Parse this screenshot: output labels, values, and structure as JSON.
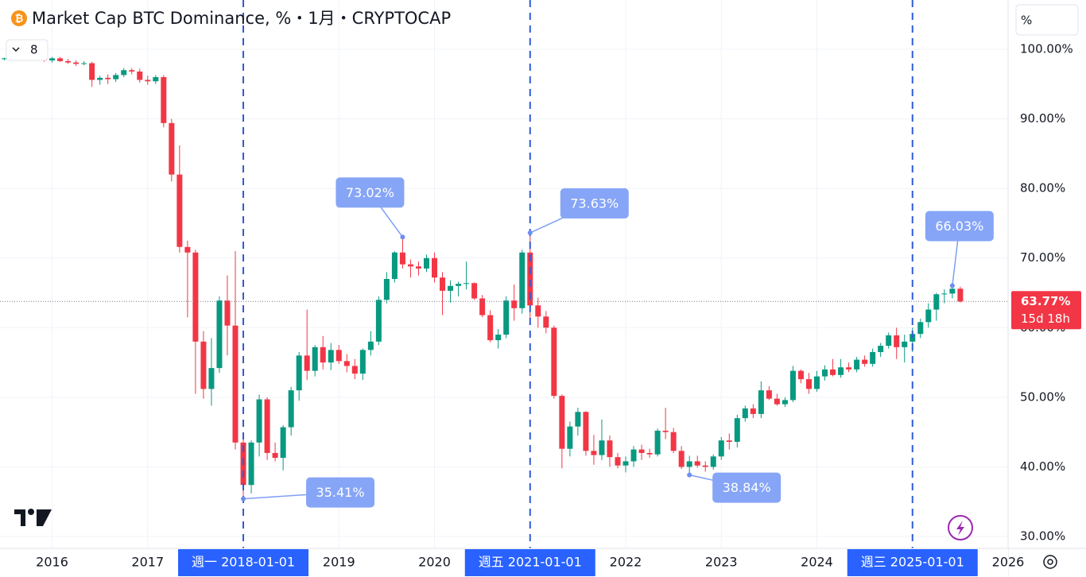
{
  "chart_data": {
    "type": "candlestick",
    "title": "Market Cap BTC Dominance, %・1月・CRYPTOCAP",
    "indicator_count": "8",
    "scale_mode": "%",
    "up_color": "#089981",
    "down_color": "#f23645",
    "grid": true,
    "x": [
      "2015-07-01",
      "2015-08-01",
      "2015-09-01",
      "2015-10-01",
      "2015-11-01",
      "2015-12-01",
      "2016-01-01",
      "2016-02-01",
      "2016-03-01",
      "2016-04-01",
      "2016-05-01",
      "2016-06-01",
      "2016-07-01",
      "2016-08-01",
      "2016-09-01",
      "2016-10-01",
      "2016-11-01",
      "2016-12-01",
      "2017-01-01",
      "2017-02-01",
      "2017-03-01",
      "2017-04-01",
      "2017-05-01",
      "2017-06-01",
      "2017-07-01",
      "2017-08-01",
      "2017-09-01",
      "2017-10-01",
      "2017-11-01",
      "2017-12-01",
      "2018-01-01",
      "2018-02-01",
      "2018-03-01",
      "2018-04-01",
      "2018-05-01",
      "2018-06-01",
      "2018-07-01",
      "2018-08-01",
      "2018-09-01",
      "2018-10-01",
      "2018-11-01",
      "2018-12-01",
      "2019-01-01",
      "2019-02-01",
      "2019-03-01",
      "2019-04-01",
      "2019-05-01",
      "2019-06-01",
      "2019-07-01",
      "2019-08-01",
      "2019-09-01",
      "2019-10-01",
      "2019-11-01",
      "2019-12-01",
      "2020-01-01",
      "2020-02-01",
      "2020-03-01",
      "2020-04-01",
      "2020-05-01",
      "2020-06-01",
      "2020-07-01",
      "2020-08-01",
      "2020-09-01",
      "2020-10-01",
      "2020-11-01",
      "2020-12-01",
      "2021-01-01",
      "2021-02-01",
      "2021-03-01",
      "2021-04-01",
      "2021-05-01",
      "2021-06-01",
      "2021-07-01",
      "2021-08-01",
      "2021-09-01",
      "2021-10-01",
      "2021-11-01",
      "2021-12-01",
      "2022-01-01",
      "2022-02-01",
      "2022-03-01",
      "2022-04-01",
      "2022-05-01",
      "2022-06-01",
      "2022-07-01",
      "2022-08-01",
      "2022-09-01",
      "2022-10-01",
      "2022-11-01",
      "2022-12-01",
      "2023-01-01",
      "2023-02-01",
      "2023-03-01",
      "2023-04-01",
      "2023-05-01",
      "2023-06-01",
      "2023-07-01",
      "2023-08-01",
      "2023-09-01",
      "2023-10-01",
      "2023-11-01",
      "2023-12-01",
      "2024-01-01",
      "2024-02-01",
      "2024-03-01",
      "2024-04-01",
      "2024-05-01",
      "2024-06-01",
      "2024-07-01",
      "2024-08-01",
      "2024-09-01",
      "2024-10-01",
      "2024-11-01",
      "2024-12-01",
      "2025-01-01",
      "2025-02-01",
      "2025-03-01",
      "2025-04-01",
      "2025-05-01",
      "2025-06-01",
      "2025-07-01"
    ],
    "open": [
      98.6,
      98.7,
      98.8,
      99.0,
      99.1,
      98.9,
      98.4,
      98.7,
      98.3,
      98.1,
      97.9,
      98.0,
      95.6,
      95.9,
      95.7,
      96.3,
      97.0,
      96.8,
      95.6,
      95.4,
      96.0,
      89.4,
      82.0,
      71.6,
      70.8,
      58.0,
      51.2,
      54.2,
      63.9,
      60.3,
      43.5,
      37.4,
      43.5,
      49.7,
      42.0,
      41.3,
      45.7,
      51.0,
      56.0,
      53.8,
      57.2,
      55.0,
      56.8,
      55.2,
      54.5,
      53.4,
      56.8,
      58.0,
      64.0,
      67.0,
      70.8,
      69.1,
      68.8,
      68.5,
      70.0,
      67.2,
      65.3,
      66.0,
      66.3,
      66.4,
      64.2,
      61.8,
      58.2,
      59.0,
      63.9,
      62.8,
      70.8,
      63.2,
      61.6,
      60.0,
      50.2,
      42.6,
      45.8,
      47.9,
      42.3,
      41.7,
      43.8,
      41.4,
      40.2,
      40.8,
      42.5,
      42.0,
      41.8,
      45.2,
      45.0,
      42.3,
      40.0,
      40.8,
      40.2,
      40.0,
      41.5,
      43.8,
      43.6,
      47.0,
      48.4,
      47.6,
      51.0,
      49.8,
      49.0,
      49.6,
      53.8,
      52.6,
      51.2,
      53.0,
      54.0,
      53.2,
      54.3,
      54.0,
      55.4,
      54.8,
      56.5,
      57.4,
      58.9,
      57.2,
      58.0,
      59.1,
      60.8,
      62.6,
      64.8,
      64.9,
      65.6
    ],
    "high": [
      98.8,
      99.0,
      99.2,
      99.3,
      99.4,
      99.1,
      98.9,
      98.9,
      98.6,
      98.4,
      98.3,
      98.2,
      96.2,
      96.4,
      96.6,
      97.3,
      97.3,
      97.2,
      96.2,
      96.3,
      96.3,
      90.0,
      86.2,
      72.5,
      71.2,
      59.5,
      58.5,
      64.5,
      67.5,
      71.0,
      44.0,
      43.8,
      50.4,
      50.0,
      43.5,
      46.0,
      51.5,
      56.5,
      62.6,
      57.5,
      58.8,
      57.8,
      57.5,
      56.2,
      55.5,
      57.0,
      59.5,
      64.5,
      68.0,
      71.0,
      73.02,
      69.8,
      69.5,
      70.5,
      70.8,
      68.0,
      66.8,
      66.6,
      69.5,
      66.5,
      64.7,
      62.5,
      59.8,
      64.5,
      66.2,
      71.2,
      73.63,
      64.3,
      62.4,
      60.3,
      50.4,
      46.5,
      48.5,
      48.0,
      44.6,
      46.8,
      44.5,
      42.0,
      41.5,
      43.0,
      43.2,
      42.6,
      45.5,
      48.5,
      45.6,
      43.0,
      41.6,
      41.6,
      40.8,
      41.8,
      44.3,
      44.8,
      47.5,
      48.8,
      49.0,
      52.3,
      51.6,
      50.5,
      50.0,
      54.5,
      54.0,
      53.5,
      53.8,
      54.6,
      55.5,
      55.5,
      55.0,
      55.8,
      56.0,
      57.0,
      57.8,
      59.3,
      60.0,
      59.0,
      60.0,
      61.3,
      63.5,
      65.0,
      65.5,
      66.03,
      65.9
    ],
    "low": [
      98.4,
      98.5,
      98.6,
      98.8,
      98.7,
      98.2,
      98.1,
      98.2,
      97.9,
      97.6,
      97.7,
      94.6,
      94.9,
      95.0,
      95.3,
      96.0,
      96.4,
      95.2,
      94.9,
      95.0,
      88.8,
      81.0,
      70.8,
      61.5,
      50.5,
      49.8,
      48.8,
      53.5,
      56.0,
      42.5,
      35.41,
      36.2,
      41.5,
      41.0,
      40.8,
      39.5,
      44.5,
      49.5,
      52.5,
      53.0,
      54.0,
      53.9,
      54.8,
      53.6,
      52.6,
      52.5,
      56.0,
      57.5,
      63.5,
      66.5,
      68.5,
      67.2,
      67.5,
      68.0,
      66.5,
      61.8,
      63.6,
      64.5,
      65.5,
      64.0,
      61.5,
      57.9,
      57.0,
      58.5,
      61.0,
      62.0,
      60.5,
      60.0,
      59.2,
      49.8,
      39.8,
      41.5,
      44.5,
      41.6,
      40.3,
      41.0,
      40.0,
      39.8,
      39.2,
      40.0,
      41.0,
      41.3,
      41.5,
      44.0,
      42.0,
      39.7,
      38.84,
      39.9,
      39.3,
      39.6,
      41.0,
      42.5,
      42.8,
      46.5,
      47.0,
      47.0,
      49.6,
      48.8,
      48.6,
      49.3,
      52.0,
      50.5,
      50.8,
      52.4,
      53.0,
      52.8,
      53.6,
      53.6,
      54.4,
      54.4,
      55.8,
      57.0,
      55.5,
      55.0,
      56.5,
      58.5,
      60.0,
      61.0,
      63.5,
      64.2,
      63.6
    ],
    "close": [
      98.7,
      98.8,
      99.0,
      99.1,
      98.9,
      98.4,
      98.7,
      98.3,
      98.1,
      97.9,
      98.0,
      95.6,
      95.9,
      95.7,
      96.3,
      97.0,
      96.8,
      95.6,
      95.4,
      96.0,
      89.4,
      82.0,
      71.6,
      70.8,
      58.0,
      51.2,
      54.2,
      63.9,
      60.3,
      43.5,
      37.4,
      43.5,
      49.7,
      42.0,
      41.3,
      45.7,
      51.0,
      56.0,
      53.8,
      57.2,
      55.0,
      56.8,
      55.2,
      54.5,
      53.4,
      56.8,
      58.0,
      64.0,
      67.0,
      70.8,
      69.1,
      68.8,
      68.5,
      70.0,
      67.2,
      65.3,
      66.0,
      66.3,
      66.4,
      64.2,
      61.8,
      58.2,
      59.0,
      63.9,
      62.8,
      70.8,
      63.2,
      61.6,
      60.0,
      50.2,
      42.6,
      45.8,
      47.9,
      42.3,
      41.7,
      43.8,
      41.4,
      40.2,
      40.8,
      42.5,
      42.0,
      41.8,
      45.2,
      45.0,
      42.3,
      40.0,
      40.8,
      40.2,
      40.0,
      41.5,
      43.8,
      43.6,
      47.0,
      48.4,
      47.6,
      51.0,
      49.8,
      49.0,
      49.6,
      53.8,
      52.6,
      51.2,
      53.0,
      54.0,
      53.2,
      54.3,
      54.0,
      55.4,
      54.8,
      56.5,
      57.4,
      58.9,
      57.2,
      58.0,
      59.1,
      60.8,
      62.6,
      64.8,
      64.9,
      65.6,
      63.77
    ],
    "xlim": [
      "2015-06-15",
      "2026-01-01"
    ],
    "xticks": [
      {
        "value": "2016-01-01",
        "label": "2016"
      },
      {
        "value": "2017-01-01",
        "label": "2017"
      },
      {
        "value": "2019-01-01",
        "label": "2019"
      },
      {
        "value": "2020-01-01",
        "label": "2020"
      },
      {
        "value": "2022-01-01",
        "label": "2022"
      },
      {
        "value": "2023-01-01",
        "label": "2023"
      },
      {
        "value": "2024-01-01",
        "label": "2024"
      },
      {
        "value": "2026-01-01",
        "label": "2026"
      }
    ],
    "ylim": [
      28.29,
      107.08
    ],
    "yticks": [
      {
        "value": 30,
        "label": "30.00%"
      },
      {
        "value": 40,
        "label": "40.00%"
      },
      {
        "value": 50,
        "label": "50.00%"
      },
      {
        "value": 60,
        "label": "60.00%"
      },
      {
        "value": 70,
        "label": "70.00%"
      },
      {
        "value": 80,
        "label": "80.00%"
      },
      {
        "value": 90,
        "label": "90.00%"
      },
      {
        "value": 100,
        "label": "100.00%"
      }
    ],
    "markers": [
      {
        "x": "2018-01-01",
        "label": "週一 2018-01-01"
      },
      {
        "x": "2021-01-01",
        "label": "週五 2021-01-01"
      },
      {
        "x": "2025-01-01",
        "label": "週三 2025-01-01"
      }
    ],
    "annotations": [
      {
        "x": "2019-09-01",
        "value": 73.02,
        "label": "73.02%"
      },
      {
        "x": "2021-01-01",
        "value": 73.63,
        "label": "73.63%"
      },
      {
        "x": "2018-01-01",
        "value": 35.41,
        "label": "35.41%"
      },
      {
        "x": "2022-09-01",
        "value": 38.84,
        "label": "38.84%"
      },
      {
        "x": "2025-06-01",
        "value": 66.03,
        "label": "66.03%"
      }
    ],
    "last_price": {
      "value": 63.77,
      "label": "63.77%",
      "countdown": "15d 18h"
    }
  }
}
